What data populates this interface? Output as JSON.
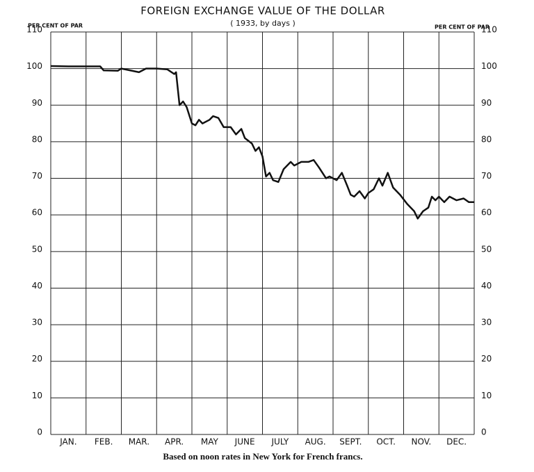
{
  "chart_data": {
    "type": "line",
    "title": "FOREIGN EXCHANGE VALUE OF THE DOLLAR",
    "subtitle": "( 1933, by days )",
    "y_label": "PER CENT OF PAR",
    "y2_label": "PER CENT OF PAR",
    "source": "Based on noon rates in New York for French francs.",
    "color": "#111111",
    "grid": true,
    "xlim": [
      0,
      12
    ],
    "xticks": [
      {
        "value": 0.5,
        "label": "JAN."
      },
      {
        "value": 1.5,
        "label": "FEB."
      },
      {
        "value": 2.5,
        "label": "MAR."
      },
      {
        "value": 3.5,
        "label": "APR."
      },
      {
        "value": 4.5,
        "label": "MAY"
      },
      {
        "value": 5.5,
        "label": "JUNE"
      },
      {
        "value": 6.5,
        "label": "JULY"
      },
      {
        "value": 7.5,
        "label": "AUG."
      },
      {
        "value": 8.5,
        "label": "SEPT."
      },
      {
        "value": 9.5,
        "label": "OCT."
      },
      {
        "value": 10.5,
        "label": "NOV."
      },
      {
        "value": 11.5,
        "label": "DEC."
      }
    ],
    "ylim": [
      0,
      110
    ],
    "yticks": [
      0,
      10,
      20,
      30,
      40,
      50,
      60,
      70,
      80,
      90,
      100,
      110
    ],
    "y2lim": [
      0,
      110
    ],
    "y2ticks": [
      0,
      10,
      20,
      30,
      40,
      50,
      60,
      70,
      80,
      90,
      100,
      110
    ],
    "x": [
      0,
      0.5,
      1,
      1.4,
      1.5,
      1.9,
      2.0,
      2.5,
      2.7,
      3.0,
      3.3,
      3.5,
      3.55,
      3.65,
      3.75,
      3.85,
      4.0,
      4.1,
      4.2,
      4.3,
      4.5,
      4.6,
      4.75,
      4.9,
      5.1,
      5.25,
      5.4,
      5.5,
      5.7,
      5.8,
      5.9,
      6.0,
      6.1,
      6.2,
      6.3,
      6.45,
      6.6,
      6.8,
      6.9,
      7.1,
      7.3,
      7.45,
      7.6,
      7.8,
      7.9,
      8.1,
      8.25,
      8.4,
      8.5,
      8.6,
      8.75,
      8.9,
      9.0,
      9.15,
      9.3,
      9.4,
      9.55,
      9.7,
      9.9,
      10.1,
      10.3,
      10.4,
      10.55,
      10.7,
      10.8,
      10.9,
      11.0,
      11.15,
      11.3,
      11.5,
      11.7,
      11.85,
      12.0
    ],
    "values": [
      100.7,
      100.6,
      100.6,
      100.6,
      99.5,
      99.4,
      100,
      99,
      100,
      100,
      99.8,
      98.5,
      99,
      90,
      91,
      89.5,
      85,
      84.5,
      86,
      85,
      86,
      87,
      86.5,
      84,
      84,
      82,
      83.5,
      81,
      79.5,
      77.5,
      78.5,
      76,
      70.5,
      71.5,
      69.5,
      69,
      72.5,
      74.5,
      73.5,
      74.5,
      74.5,
      75,
      73,
      70,
      70.5,
      69.5,
      71.5,
      68,
      65.5,
      65,
      66.5,
      64.5,
      66,
      67,
      70,
      68,
      71.5,
      67.5,
      65.5,
      63,
      61,
      59,
      61,
      62,
      65,
      64,
      65,
      63.5,
      65,
      64,
      64.5,
      63.5,
      63.5
    ]
  }
}
